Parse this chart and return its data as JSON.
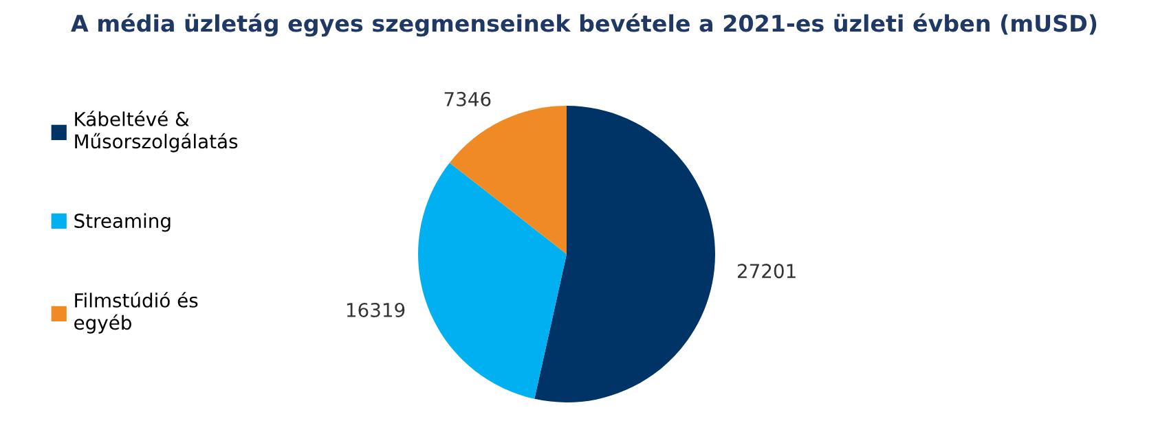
{
  "chart_data": {
    "type": "pie",
    "title": "A média üzletág egyes szegmenseinek bevétele a 2021-es üzleti évben (mUSD)",
    "categories": [
      "Kábeltévé &\nMűsorszolgálatás",
      "Streaming",
      "Filmstúdió és\negyéb"
    ],
    "values": [
      27201,
      16319,
      7346
    ],
    "colors": [
      "#003366",
      "#00b0f0",
      "#f08a24"
    ],
    "data_labels": true,
    "legend": "left"
  }
}
